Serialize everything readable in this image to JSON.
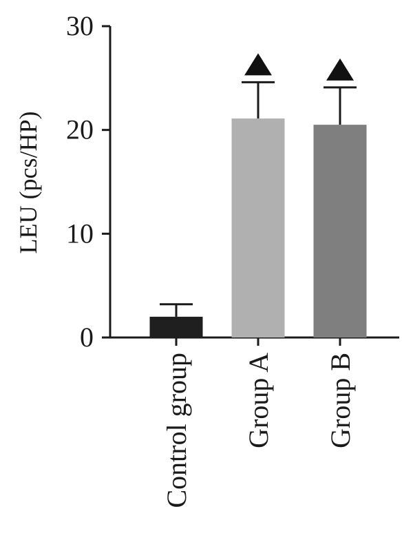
{
  "chart_data": {
    "type": "bar",
    "title": "",
    "xlabel": "",
    "ylabel": "LEU (pcs/HP)",
    "ylim": [
      0,
      30
    ],
    "yticks": [
      0,
      10,
      20,
      30
    ],
    "yticks_labels": [
      "0",
      "10",
      "20",
      "30"
    ],
    "categories": [
      "Control group",
      "Group A",
      "Group B"
    ],
    "values": [
      2.0,
      21.1,
      20.5
    ],
    "error_upper": [
      3.2,
      24.6,
      24.1
    ],
    "significance_markers": [
      false,
      true,
      true
    ],
    "bar_colors": [
      "#1f1f1f",
      "#b0b0b0",
      "#7f7f7f"
    ],
    "marker_color": "#111111",
    "axis_color": "#1a1a1a"
  }
}
